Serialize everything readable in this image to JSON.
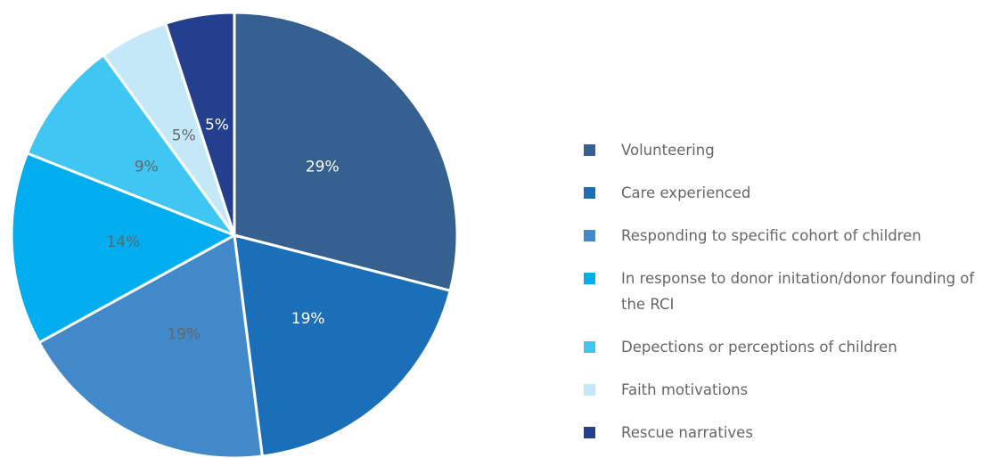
{
  "chart_data": {
    "type": "pie",
    "categories": [
      "Volunteering",
      "Care experienced",
      "Responding to specific cohort of children",
      "In response to donor initation/donor founding of the RCI",
      "Depections or perceptions of children",
      "Faith motivations",
      "Rescue narratives"
    ],
    "values": [
      29,
      19,
      19,
      14,
      9,
      5,
      5
    ],
    "value_labels": [
      "29%",
      "19%",
      "19%",
      "14%",
      "9%",
      "5%",
      "5%"
    ],
    "colors": [
      "#36608f",
      "#1b6fb9",
      "#4189c8",
      "#00adee",
      "#40c6f2",
      "#c5e8f8",
      "#243f8e"
    ],
    "label_colors": [
      "#ffffff",
      "#ffffff",
      "#666666",
      "#666666",
      "#666666",
      "#666666",
      "#ffffff"
    ],
    "legend": "right"
  }
}
